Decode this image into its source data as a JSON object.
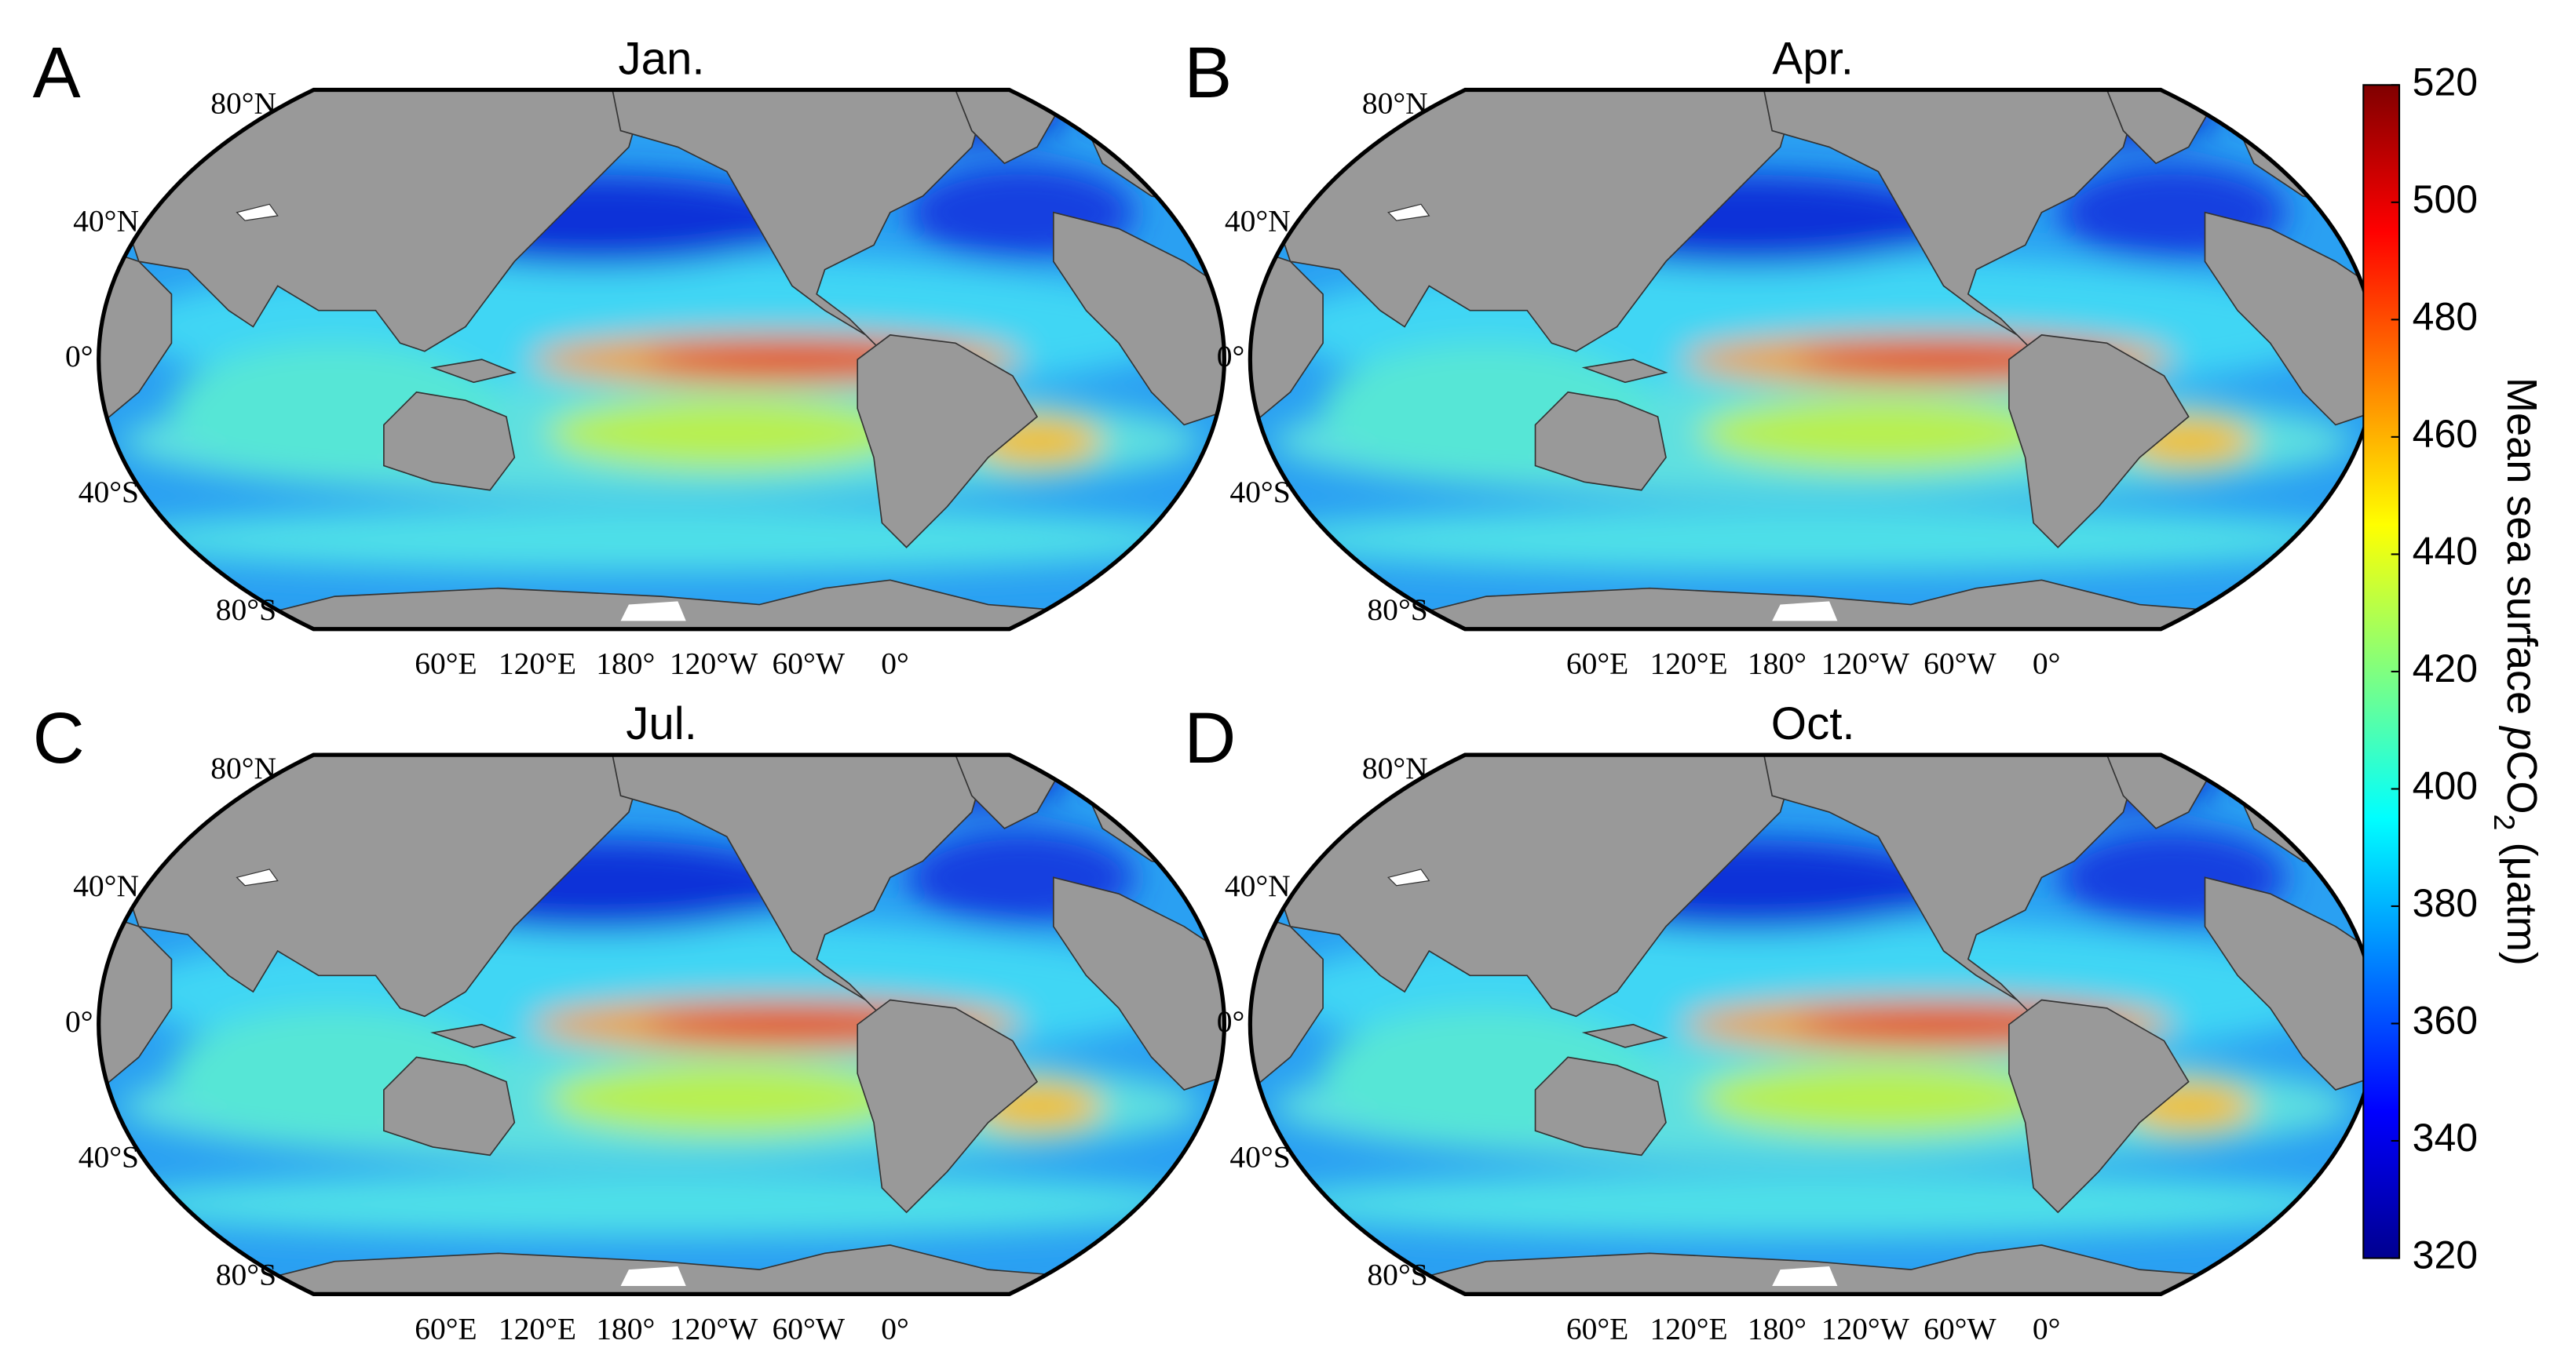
{
  "panels": [
    {
      "letter": "A",
      "title": "Jan."
    },
    {
      "letter": "B",
      "title": "Apr."
    },
    {
      "letter": "C",
      "title": "Jul."
    },
    {
      "letter": "D",
      "title": "Oct."
    }
  ],
  "lat_labels": [
    "80°N",
    "40°N",
    "0°",
    "40°S",
    "80°S"
  ],
  "lon_labels": [
    "60°E",
    "120°E",
    "180°",
    "120°W",
    "60°W",
    "0°"
  ],
  "colorbar": {
    "label_parts": [
      "Mean sea surface ",
      "p",
      "CO",
      "2",
      " (μatm)"
    ],
    "ticks": [
      320,
      340,
      360,
      380,
      400,
      420,
      440,
      460,
      480,
      500,
      520
    ],
    "lim": [
      320,
      520
    ]
  }
}
